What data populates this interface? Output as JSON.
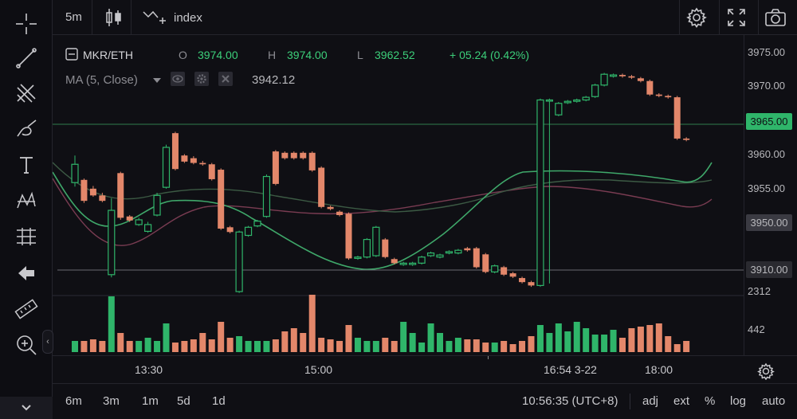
{
  "toolbar": {
    "interval": "5m",
    "indicator_label": "index"
  },
  "symbol": "MKR/ETH",
  "ohlc": {
    "o_label": "O",
    "o_value": "3974.00",
    "h_label": "H",
    "h_value": "3974.00",
    "l_label": "L",
    "l_value": "3962.52",
    "change": "+ 05.24 (0.42%)"
  },
  "indicator": {
    "name": "MA (5, Close)",
    "value": "3942.12"
  },
  "price_scale": {
    "ticks": [
      "3975.00",
      "3970.00",
      "3960.00",
      "3955.00",
      "2312",
      "442"
    ],
    "current_price": "3965.00",
    "tag_3950": "3950.00",
    "tag_3910": "3910.00"
  },
  "time_axis": {
    "labels": [
      "13:30",
      "15:00",
      "16:54 3-22",
      "18:00"
    ]
  },
  "ranges": [
    "6m",
    "3m",
    "1m",
    "5d",
    "1d"
  ],
  "footer": {
    "clock": "10:56:35 (UTC+8)",
    "options": [
      "adj",
      "ext",
      "%",
      "log",
      "auto"
    ]
  },
  "colors": {
    "up": "#2fb56a",
    "down": "#e3876a",
    "ma_green": "#3fa86a",
    "ma_dark_green": "#3c5a44",
    "ma_red": "#7a3c52",
    "price_line": "#2f7d4b",
    "price_tag_bg": "#2fb56a",
    "muted_tag_bg": "#3a3a42"
  },
  "icons": {
    "crosshair": "crosshair-icon",
    "line": "trend-line-icon",
    "pitchfork": "pitchfork-icon",
    "brush": "brush-icon",
    "text": "text-tool-icon",
    "pattern": "pattern-icon",
    "fib": "fib-levels-icon",
    "back": "back-arrow-icon",
    "ruler": "ruler-icon",
    "zoom": "zoom-icon",
    "settings": "gear-icon",
    "fullscreen": "fullscreen-icon",
    "screenshot": "camera-icon"
  },
  "chart_data": {
    "type": "candlestick",
    "candles": [
      [
        "u",
        3958.5,
        3955.8,
        3959.8,
        3955.2
      ],
      [
        "d",
        3956.2,
        3953.1,
        3956.4,
        3952.8
      ],
      [
        "d",
        3954.9,
        3953.9,
        3955.3,
        3953.7
      ],
      [
        "d",
        3953.9,
        3953.1,
        3954.3,
        3952.9
      ],
      [
        "u",
        3942.2,
        3951.7,
        3953.5,
        3941.8
      ],
      [
        "d",
        3957.2,
        3950.6,
        3957.4,
        3950.3
      ],
      [
        "d",
        3950.8,
        3950.2,
        3951.0,
        3950.0
      ],
      [
        "u",
        3949.6,
        3950.3,
        3950.6,
        3949.4
      ],
      [
        "u",
        3948.6,
        3949.6,
        3950.0,
        3948.4
      ],
      [
        "u",
        3951.0,
        3953.9,
        3954.3,
        3950.8
      ],
      [
        "u",
        3955.1,
        3961.0,
        3961.4,
        3954.9
      ],
      [
        "d",
        3963.1,
        3957.8,
        3963.3,
        3957.6
      ],
      [
        "d",
        3959.8,
        3958.9,
        3960.0,
        3958.7
      ],
      [
        "d",
        3959.4,
        3958.7,
        3959.7,
        3958.5
      ],
      [
        "d",
        3958.7,
        3958.5,
        3959.0,
        3958.3
      ],
      [
        "d",
        3958.5,
        3956.3,
        3958.7,
        3956.1
      ],
      [
        "d",
        3957.7,
        3949.0,
        3957.9,
        3948.8
      ],
      [
        "d",
        3949.2,
        3948.5,
        3949.4,
        3948.3
      ],
      [
        "u",
        3939.7,
        3948.5,
        3948.7,
        3939.5
      ],
      [
        "u",
        3948.0,
        3949.2,
        3949.4,
        3947.8
      ],
      [
        "u",
        3949.4,
        3950.1,
        3950.3,
        3949.2
      ],
      [
        "u",
        3950.8,
        3956.7,
        3957.0,
        3950.6
      ],
      [
        "d",
        3960.4,
        3955.6,
        3960.6,
        3955.4
      ],
      [
        "d",
        3960.2,
        3959.4,
        3960.4,
        3959.2
      ],
      [
        "d",
        3960.2,
        3959.4,
        3960.4,
        3959.2
      ],
      [
        "d",
        3960.2,
        3959.4,
        3960.4,
        3959.2
      ],
      [
        "d",
        3960.2,
        3957.6,
        3960.4,
        3957.4
      ],
      [
        "d",
        3958.0,
        3952.2,
        3958.2,
        3952.0
      ],
      [
        "d",
        3952.2,
        3951.9,
        3952.4,
        3951.7
      ],
      [
        "d",
        3951.5,
        3951.0,
        3951.7,
        3950.8
      ],
      [
        "d",
        3951.2,
        3944.6,
        3951.4,
        3944.4
      ],
      [
        "u",
        3944.6,
        3944.8,
        3945.0,
        3944.4
      ],
      [
        "u",
        3944.8,
        3947.4,
        3947.6,
        3944.6
      ],
      [
        "u",
        3945.0,
        3949.2,
        3949.4,
        3944.8
      ],
      [
        "d",
        3947.4,
        3944.8,
        3947.6,
        3944.6
      ],
      [
        "d",
        3944.5,
        3943.9,
        3944.7,
        3943.7
      ],
      [
        "u",
        3943.7,
        3943.9,
        3944.1,
        3943.5
      ],
      [
        "u",
        3943.7,
        3943.9,
        3944.1,
        3943.5
      ],
      [
        "u",
        3943.9,
        3944.8,
        3945.0,
        3943.7
      ],
      [
        "u",
        3945.0,
        3945.4,
        3945.6,
        3944.8
      ],
      [
        "u",
        3944.8,
        3945.1,
        3945.3,
        3944.6
      ],
      [
        "u",
        3945.4,
        3945.6,
        3945.8,
        3945.2
      ],
      [
        "u",
        3945.4,
        3945.8,
        3946.0,
        3945.2
      ],
      [
        "d",
        3946.1,
        3945.8,
        3946.3,
        3945.6
      ],
      [
        "d",
        3946.1,
        3943.3,
        3946.3,
        3943.1
      ],
      [
        "d",
        3945.2,
        3942.6,
        3945.4,
        3942.4
      ],
      [
        "u",
        3942.6,
        3943.5,
        3943.7,
        3942.4
      ],
      [
        "d",
        3943.3,
        3942.2,
        3943.5,
        3942.0
      ],
      [
        "d",
        3942.4,
        3941.9,
        3942.6,
        3941.7
      ],
      [
        "d",
        3941.7,
        3941.1,
        3941.9,
        3940.9
      ],
      [
        "d",
        3941.1,
        3940.6,
        3941.3,
        3940.4
      ],
      [
        "u",
        3940.6,
        3968.0,
        3968.2,
        3940.4
      ],
      [
        "u",
        3968.0,
        3968.0,
        3968.2,
        3940.9
      ],
      [
        "u",
        3965.8,
        3967.5,
        3967.7,
        3965.6
      ],
      [
        "u",
        3967.6,
        3967.8,
        3968.0,
        3967.4
      ],
      [
        "u",
        3967.8,
        3968.0,
        3968.2,
        3967.6
      ],
      [
        "u",
        3968.0,
        3968.4,
        3968.6,
        3967.8
      ],
      [
        "u",
        3968.5,
        3970.2,
        3970.4,
        3968.3
      ],
      [
        "u",
        3970.2,
        3971.8,
        3972.0,
        3970.0
      ],
      [
        "u",
        3971.5,
        3971.7,
        3971.9,
        3971.3
      ],
      [
        "d",
        3971.7,
        3971.5,
        3971.9,
        3971.3
      ],
      [
        "d",
        3971.5,
        3971.3,
        3971.7,
        3971.1
      ],
      [
        "d",
        3971.2,
        3970.8,
        3971.4,
        3970.6
      ],
      [
        "d",
        3970.8,
        3968.8,
        3971.0,
        3968.6
      ],
      [
        "d",
        3968.8,
        3968.6,
        3969.0,
        3968.4
      ],
      [
        "d",
        3968.6,
        3968.4,
        3968.8,
        3968.2
      ],
      [
        "d",
        3968.4,
        3962.3,
        3968.6,
        3962.1
      ],
      [
        "d",
        3962.3,
        3962.1,
        3962.5,
        3961.9
      ]
    ]
  }
}
